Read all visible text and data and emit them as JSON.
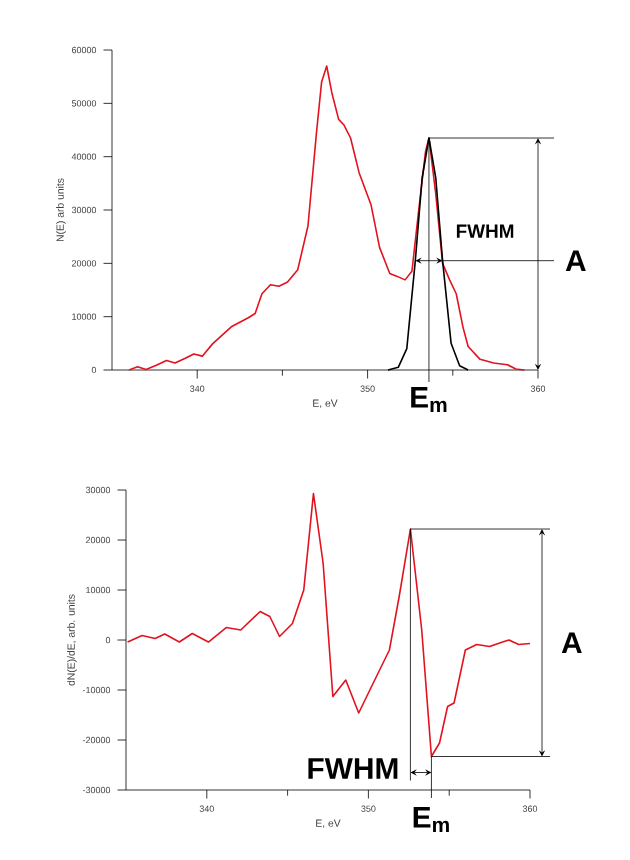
{
  "chart_data": [
    {
      "type": "line",
      "xlabel": "E, eV",
      "ylabel": "N(E) arb units",
      "xlim": [
        335,
        360
      ],
      "xticks": [
        340,
        350,
        360
      ],
      "ylim": [
        0,
        60000
      ],
      "yticks": [
        0,
        10000,
        20000,
        30000,
        40000,
        50000,
        60000
      ],
      "grid": false,
      "marker": "none",
      "line_style": "solid",
      "series": [
        {
          "color": "#e3121f",
          "x": [
            336.0,
            336.5,
            337.0,
            337.6,
            338.2,
            338.7,
            339.3,
            339.8,
            340.3,
            340.9,
            342.0,
            343.0,
            343.4,
            343.8,
            344.3,
            344.8,
            345.3,
            345.9,
            346.5,
            347.0,
            347.3,
            347.6,
            347.9,
            348.3,
            348.6,
            349.0,
            349.5,
            350.2,
            350.7,
            351.3,
            351.7,
            352.2,
            352.6,
            353.0,
            353.4,
            353.6,
            354.0,
            354.4,
            354.8,
            355.2,
            355.6,
            355.9,
            356.6,
            357.4,
            358.2,
            358.7,
            359.2
          ],
          "values": [
            0,
            600,
            100,
            900,
            1800,
            1300,
            2200,
            3000,
            2600,
            4900,
            8100,
            9800,
            10600,
            14300,
            16000,
            15700,
            16500,
            18800,
            27000,
            44500,
            54000,
            57000,
            52000,
            47000,
            46000,
            43500,
            37000,
            31000,
            23000,
            18100,
            17600,
            16900,
            18500,
            30000,
            41000,
            43500,
            33000,
            20000,
            17000,
            14300,
            8000,
            4400,
            2000,
            1300,
            1000,
            200,
            0
          ]
        },
        {
          "color": "#000000",
          "x": [
            351.2,
            351.8,
            352.3,
            352.8,
            353.2,
            353.6,
            354.0,
            354.4,
            354.9,
            355.4,
            355.9
          ],
          "values": [
            0,
            500,
            4000,
            20500,
            36000,
            43500,
            36000,
            20500,
            5000,
            800,
            0
          ]
        }
      ],
      "annotations": [
        "A",
        {
          "text": "FWHM",
          "x": 352.8,
          "y": 20500
        },
        {
          "text": "E$_{m}$",
          "x": 353.6,
          "y": 43500
        }
      ],
      "ref_lines": [
        {
          "axis": "y",
          "value": 43500
        },
        {
          "axis": "y",
          "value": 20500
        }
      ]
    },
    {
      "type": "line",
      "xlabel": "E, eV",
      "ylabel": "dN(E)/dE, arb. units",
      "xlim": [
        335,
        360
      ],
      "xticks": [
        340,
        350,
        360
      ],
      "ylim": [
        -30000,
        30000
      ],
      "yticks": [
        -30000,
        -20000,
        -10000,
        0,
        10000,
        20000,
        30000
      ],
      "grid": false,
      "marker": "none",
      "line_style": "solid",
      "series": [
        {
          "color": "#e3121f",
          "x": [
            335.1,
            336.0,
            336.8,
            337.4,
            338.3,
            339.1,
            340.1,
            341.2,
            342.1,
            343.3,
            343.9,
            344.5,
            345.3,
            346.0,
            346.6,
            347.2,
            347.8,
            348.6,
            349.4,
            350.3,
            351.3,
            351.9,
            352.6,
            353.3,
            353.9,
            354.4,
            354.9,
            355.3,
            356.0,
            356.7,
            357.5,
            358.3,
            358.7,
            359.3,
            360.0
          ],
          "values": [
            -400,
            900,
            300,
            1200,
            -400,
            1300,
            -400,
            2500,
            2000,
            5700,
            4700,
            700,
            3300,
            10000,
            29300,
            15300,
            -11300,
            -8000,
            -14600,
            -8600,
            -2000,
            8600,
            22200,
            2000,
            -23300,
            -20600,
            -13300,
            -12600,
            -2000,
            -900,
            -1300,
            -400,
            0,
            -900,
            -700
          ]
        }
      ],
      "annotations": [
        "A",
        {
          "text": "FWHM",
          "x": 352.6,
          "y": 22200
        },
        {
          "text": "E$_{m}$",
          "x": 353.9,
          "y": -23300
        }
      ],
      "ref_lines": [
        {
          "axis": "y",
          "value": 22200
        },
        {
          "axis": "y",
          "value": -23300
        }
      ]
    }
  ]
}
